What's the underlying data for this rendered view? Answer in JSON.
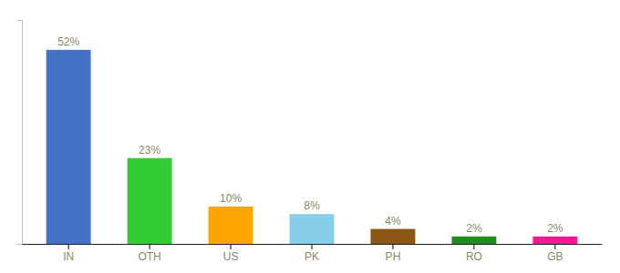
{
  "chart_data": {
    "type": "bar",
    "categories": [
      "IN",
      "OTH",
      "US",
      "PK",
      "PH",
      "RO",
      "GB"
    ],
    "values": [
      52,
      23,
      10,
      8,
      4,
      2,
      2
    ],
    "value_labels": [
      "52%",
      "23%",
      "10%",
      "8%",
      "4%",
      "2%",
      "2%"
    ],
    "colors": [
      "#4472C4",
      "#33CC33",
      "#FFA500",
      "#87CEEB",
      "#8B5513",
      "#228B22",
      "#FF1493"
    ],
    "ylim": [
      0,
      60
    ],
    "data_labels": true,
    "tick_labels": "x"
  }
}
